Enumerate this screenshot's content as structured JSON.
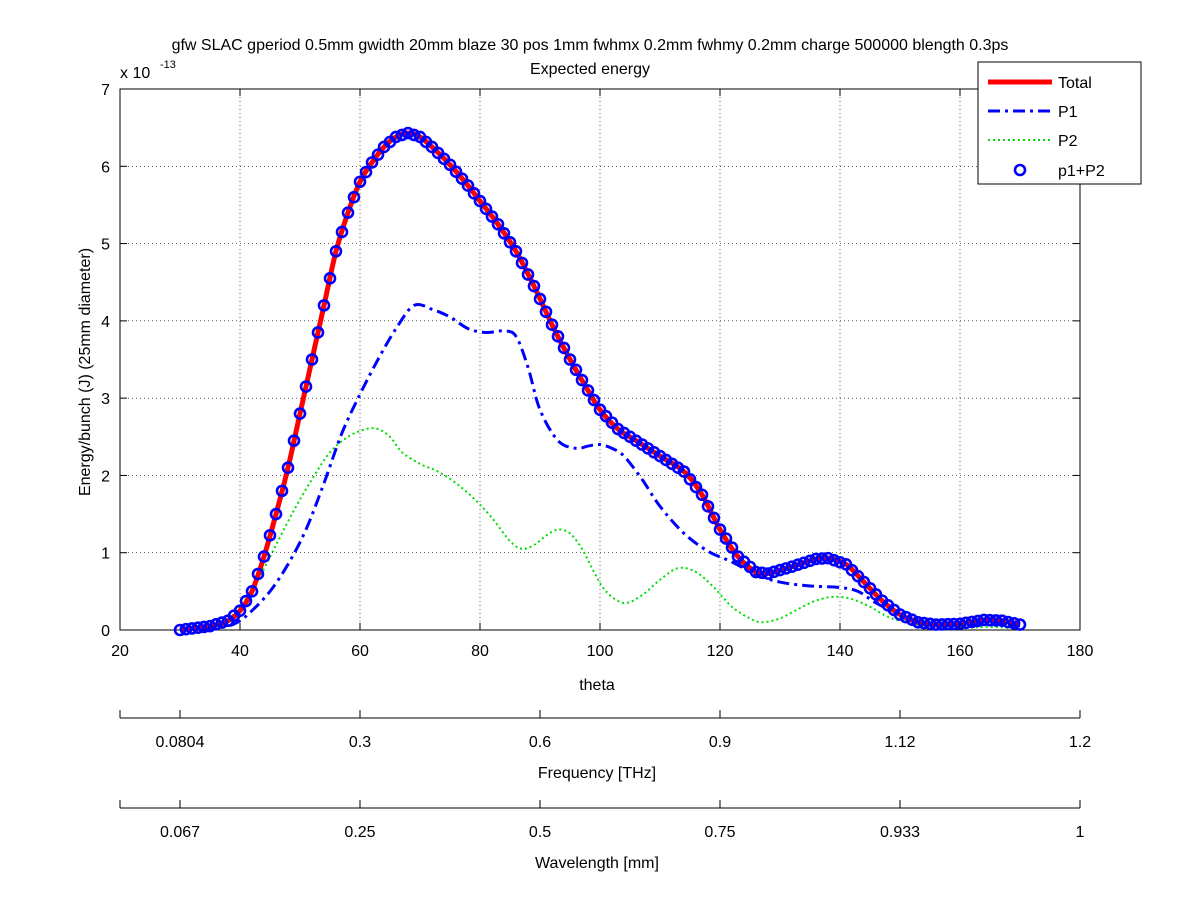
{
  "chart_data": {
    "type": "line",
    "title": "gfw SLAC gperiod 0.5mm gwidth 20mm blaze 30 pos 1mm fwhmx 0.2mm fwhmy 0.2mm charge 500000 blength 0.3ps",
    "subtitle": "Expected energy",
    "xlabel": "theta",
    "ylabel": "Energy/bunch (J) (25mm diameter)",
    "y_exponent_label": "x 10",
    "y_exponent": "-13",
    "xlim": [
      20,
      180
    ],
    "ylim": [
      0,
      7
    ],
    "x_ticks": [
      "20",
      "40",
      "60",
      "80",
      "100",
      "120",
      "140",
      "160",
      "180"
    ],
    "y_ticks": [
      "0",
      "1",
      "2",
      "3",
      "4",
      "5",
      "6",
      "7"
    ],
    "grid": true,
    "legend_position": "top-right",
    "series": [
      {
        "name": "Total",
        "color": "#ff0000",
        "style": "solid",
        "x": [
          30,
          35,
          38,
          40,
          42,
          44,
          46,
          48,
          50,
          52,
          54,
          56,
          58,
          60,
          62,
          64,
          66,
          68,
          70,
          72,
          75,
          78,
          80,
          83,
          86,
          89,
          92,
          95,
          98,
          100,
          103,
          106,
          110,
          114,
          117,
          120,
          123,
          126,
          128,
          132,
          136,
          138,
          141,
          144,
          147,
          150,
          153,
          156,
          160,
          164,
          167,
          170
        ],
        "y": [
          0.0,
          0.05,
          0.12,
          0.25,
          0.5,
          0.95,
          1.5,
          2.1,
          2.8,
          3.5,
          4.2,
          4.9,
          5.4,
          5.8,
          6.05,
          6.25,
          6.38,
          6.43,
          6.38,
          6.25,
          6.02,
          5.75,
          5.55,
          5.25,
          4.9,
          4.45,
          3.95,
          3.5,
          3.1,
          2.85,
          2.6,
          2.45,
          2.25,
          2.05,
          1.75,
          1.3,
          0.95,
          0.75,
          0.73,
          0.82,
          0.92,
          0.93,
          0.85,
          0.62,
          0.38,
          0.2,
          0.1,
          0.07,
          0.08,
          0.13,
          0.12,
          0.07
        ]
      },
      {
        "name": "P1",
        "color": "#0000ff",
        "style": "dash-dot",
        "x": [
          30,
          35,
          38,
          40,
          42,
          45,
          48,
          51,
          54,
          57,
          60,
          63,
          66,
          69,
          72,
          75,
          78,
          81,
          84,
          86,
          88,
          90,
          93,
          96,
          98,
          100,
          102,
          104,
          107,
          110,
          114,
          118,
          122,
          126,
          130,
          135,
          140,
          143,
          146,
          150,
          154,
          158,
          162,
          166,
          170
        ],
        "y": [
          0.0,
          0.02,
          0.05,
          0.12,
          0.25,
          0.5,
          0.85,
          1.3,
          1.9,
          2.55,
          3.05,
          3.5,
          3.9,
          4.2,
          4.15,
          4.05,
          3.9,
          3.85,
          3.87,
          3.8,
          3.4,
          2.85,
          2.45,
          2.35,
          2.38,
          2.4,
          2.35,
          2.25,
          1.95,
          1.6,
          1.25,
          1.02,
          0.88,
          0.72,
          0.62,
          0.57,
          0.55,
          0.5,
          0.35,
          0.2,
          0.1,
          0.06,
          0.07,
          0.08,
          0.05
        ]
      },
      {
        "name": "P2",
        "color": "#00dd00",
        "style": "dotted",
        "x": [
          30,
          35,
          38,
          40,
          43,
          46,
          49,
          52,
          55,
          58,
          61,
          63,
          65,
          67,
          70,
          73,
          76,
          79,
          82,
          85,
          87,
          89,
          91,
          93,
          95,
          97,
          99,
          101,
          104,
          107,
          110,
          113,
          116,
          119,
          122,
          125,
          127,
          130,
          133,
          136,
          139,
          142,
          145,
          148,
          151,
          154,
          157,
          161,
          165,
          170
        ],
        "y": [
          0.0,
          0.05,
          0.15,
          0.3,
          0.65,
          1.1,
          1.55,
          1.95,
          2.3,
          2.5,
          2.6,
          2.6,
          2.5,
          2.3,
          2.15,
          2.05,
          1.9,
          1.7,
          1.45,
          1.15,
          1.05,
          1.1,
          1.22,
          1.3,
          1.25,
          1.05,
          0.75,
          0.5,
          0.35,
          0.45,
          0.65,
          0.8,
          0.75,
          0.55,
          0.3,
          0.15,
          0.1,
          0.15,
          0.27,
          0.38,
          0.43,
          0.4,
          0.3,
          0.17,
          0.1,
          0.06,
          0.04,
          0.03,
          0.04,
          0.02
        ]
      },
      {
        "name": "p1+P2",
        "color": "#0000ff",
        "style": "circle-markers",
        "x_from": 30,
        "x_to": 170,
        "x_step": 1,
        "source": "Total"
      }
    ],
    "secondary_axes": [
      {
        "label": "Frequency [THz]",
        "tick_theta": [
          30,
          60,
          90,
          120,
          150,
          180
        ],
        "tick_labels": [
          "0.0804",
          "0.3",
          "0.6",
          "0.9",
          "1.12",
          "1.2"
        ]
      },
      {
        "label": "Wavelength [mm]",
        "tick_theta": [
          30,
          60,
          90,
          120,
          150,
          180
        ],
        "tick_labels": [
          "0.067",
          "0.25",
          "0.5",
          "0.75",
          "0.933",
          "1"
        ]
      }
    ]
  }
}
